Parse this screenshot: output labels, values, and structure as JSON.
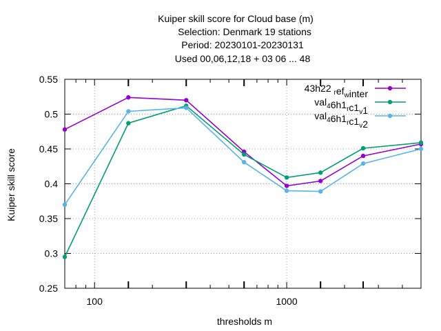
{
  "chart_data": {
    "type": "line",
    "title_lines": [
      "Kuiper skill score  for Cloud base (m)",
      "Selection: Denmark     19 stations",
      "Period: 20230101-20230131",
      "Used  00,06,12,18  + 03 06 ... 48"
    ],
    "xlabel": "thresholds m",
    "ylabel": "Kuiper skill score",
    "xscale": "log",
    "xlim": [
      70,
      5000
    ],
    "ylim": [
      0.25,
      0.55
    ],
    "x_tick_labels": [
      "100",
      "1000"
    ],
    "x_major_ticks": [
      100,
      1000
    ],
    "x_data_ticks": [
      150,
      300,
      600,
      1500,
      2500
    ],
    "y_ticks": [
      "0.25",
      "0.3",
      "0.35",
      "0.4",
      "0.45",
      "0.5",
      "0.55"
    ],
    "grid": true,
    "legend_position": "top-right",
    "x": [
      70,
      150,
      300,
      600,
      1000,
      1500,
      2500,
      5000
    ],
    "series": [
      {
        "name": "43h22_ref_winter",
        "legend_parts": [
          [
            "43h22 ",
            ""
          ],
          [
            "r",
            "sub"
          ],
          [
            "ef",
            ""
          ],
          [
            "w",
            "sub"
          ],
          [
            "inter",
            ""
          ]
        ],
        "color": "#9400d3",
        "values": [
          0.478,
          0.524,
          0.52,
          0.446,
          0.397,
          0.404,
          0.44,
          0.457
        ]
      },
      {
        "name": "val_46h1_rc1_v1",
        "legend_parts": [
          [
            "val",
            ""
          ],
          [
            "4",
            "sub"
          ],
          [
            "6h1",
            ""
          ],
          [
            "r",
            "sub"
          ],
          [
            "c1",
            ""
          ],
          [
            "v",
            "sub"
          ],
          [
            "1",
            ""
          ]
        ],
        "color": "#009e73",
        "values": [
          0.295,
          0.487,
          0.512,
          0.442,
          0.409,
          0.416,
          0.451,
          0.459
        ]
      },
      {
        "name": "val_46h1_rc1_v2",
        "legend_parts": [
          [
            "val",
            ""
          ],
          [
            "4",
            "sub"
          ],
          [
            "6h1",
            ""
          ],
          [
            "r",
            "sub"
          ],
          [
            "c1",
            ""
          ],
          [
            "v",
            "sub"
          ],
          [
            "2",
            ""
          ]
        ],
        "color": "#56b4e9",
        "values": [
          0.37,
          0.504,
          0.509,
          0.431,
          0.39,
          0.389,
          0.429,
          0.45
        ]
      }
    ]
  }
}
